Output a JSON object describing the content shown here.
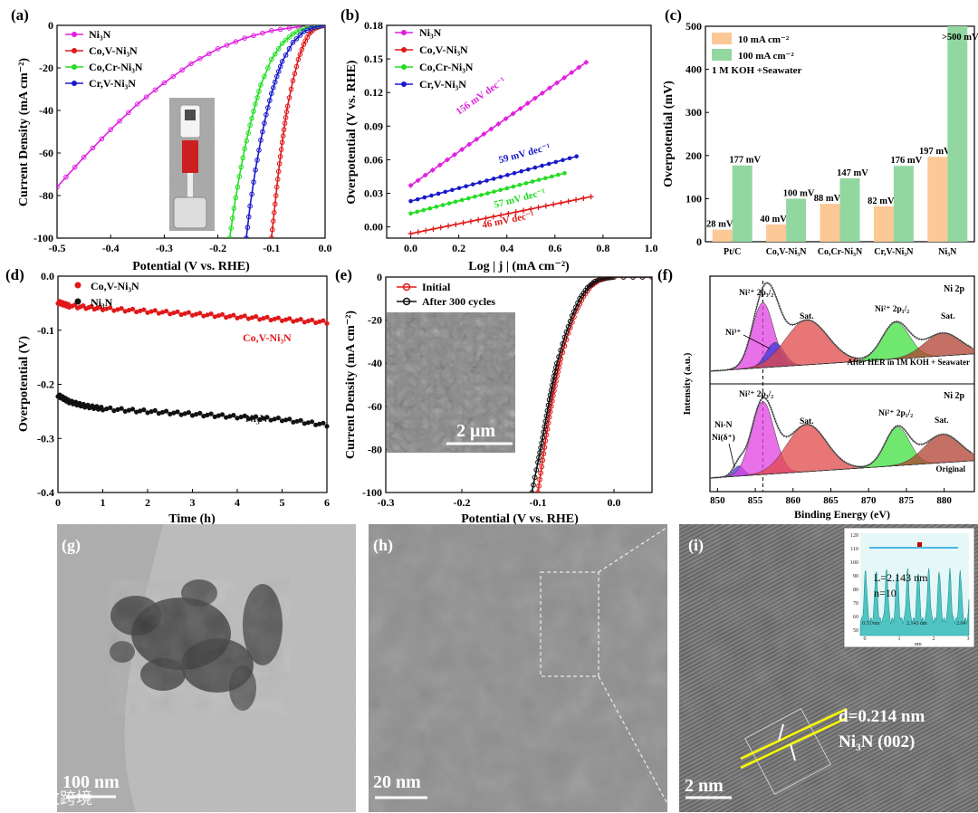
{
  "figure": {
    "watermark": "大数跨境",
    "a": {
      "label": "(a)",
      "xlabel": "Potential (V vs. RHE)",
      "ylabel": "Current Density (mA cm⁻²)",
      "xlim": [
        -0.5,
        0.0
      ],
      "ylim": [
        -100,
        0
      ],
      "xticks": [
        "-0.5",
        "-0.4",
        "-0.3",
        "-0.2",
        "-0.1",
        "0.0"
      ],
      "xtick_values": [
        -0.5,
        -0.4,
        -0.3,
        -0.2,
        -0.1,
        0.0
      ],
      "yticks": [
        "0",
        "-20",
        "-40",
        "-60",
        "-80",
        "-100"
      ],
      "ytick_values": [
        0,
        -20,
        -40,
        -60,
        -80,
        -100
      ],
      "series": [
        {
          "name": "Ni₃N",
          "color": "#e020e0",
          "marker": "circle",
          "x": [
            -0.5,
            -0.45,
            -0.4,
            -0.35,
            -0.3,
            -0.25,
            -0.2,
            -0.15,
            -0.1,
            -0.05,
            0.0
          ],
          "y": [
            -76,
            -62,
            -49,
            -37,
            -27,
            -18,
            -11,
            -6,
            -2.5,
            -0.7,
            0
          ]
        },
        {
          "name": "Co,V-Ni₃N",
          "color": "#e01818",
          "marker": "circle",
          "x": [
            -0.1,
            -0.095,
            -0.09,
            -0.085,
            -0.08,
            -0.075,
            -0.07,
            -0.06,
            -0.05,
            -0.04,
            -0.03,
            -0.02,
            -0.01,
            0.0
          ],
          "y": [
            -100,
            -88,
            -76,
            -65,
            -55,
            -46,
            -38,
            -26,
            -16,
            -9,
            -4,
            -1.5,
            -0.5,
            0
          ]
        },
        {
          "name": "Co,Cr-Ni₃N",
          "color": "#22dd22",
          "marker": "circle",
          "x": [
            -0.178,
            -0.17,
            -0.16,
            -0.15,
            -0.14,
            -0.13,
            -0.12,
            -0.1,
            -0.08,
            -0.06,
            -0.04,
            -0.02,
            0.0
          ],
          "y": [
            -100,
            -86,
            -71,
            -58,
            -47,
            -37,
            -28,
            -16,
            -8.5,
            -4,
            -1.5,
            -0.4,
            0
          ]
        },
        {
          "name": "Cr,V-Ni₃N",
          "color": "#1818cc",
          "marker": "circle",
          "x": [
            -0.147,
            -0.14,
            -0.13,
            -0.12,
            -0.11,
            -0.1,
            -0.09,
            -0.08,
            -0.06,
            -0.04,
            -0.02,
            0.0
          ],
          "y": [
            -100,
            -85,
            -68,
            -54,
            -42,
            -32,
            -24,
            -17,
            -8,
            -3,
            -0.8,
            0
          ]
        }
      ],
      "inset_caption": ""
    },
    "b": {
      "label": "(b)",
      "xlabel": "Log | j | (mA cm⁻²)",
      "ylabel": "Overpotential (V vs. RHE)",
      "xlim": [
        -0.1,
        1.0
      ],
      "ylim": [
        -0.01,
        0.18
      ],
      "xticks": [
        "0.0",
        "0.2",
        "0.4",
        "0.6",
        "0.8",
        "1.0"
      ],
      "xtick_values": [
        0.0,
        0.2,
        0.4,
        0.6,
        0.8,
        1.0
      ],
      "yticks": [
        "0.00",
        "0.03",
        "0.06",
        "0.09",
        "0.12",
        "0.15",
        "0.18"
      ],
      "ytick_values": [
        0.0,
        0.03,
        0.06,
        0.09,
        0.12,
        0.15,
        0.18
      ],
      "series": [
        {
          "name": "Ni₃N",
          "color": "#e020e0",
          "marker": "diamond",
          "x0": 0.0,
          "x1": 0.73,
          "y0": 0.037,
          "y1": 0.147,
          "slope_label": "156 mV dec⁻¹",
          "label_x": 0.2,
          "label_y": 0.095
        },
        {
          "name": "Co,V-Ni₃N",
          "color": "#e01818",
          "marker": "star",
          "x0": 0.0,
          "x1": 0.75,
          "y0": -0.006,
          "y1": 0.027,
          "slope_label": "46 mV dec⁻¹",
          "label_x": 0.3,
          "label_y": -0.006
        },
        {
          "name": "Co,Cr-Ni₃N",
          "color": "#22dd22",
          "marker": "circle",
          "x0": 0.0,
          "x1": 0.64,
          "y0": 0.012,
          "y1": 0.048,
          "slope_label": "57 mV dec⁻¹",
          "label_x": 0.35,
          "label_y": 0.012
        },
        {
          "name": "Cr,V-Ni₃N",
          "color": "#1818cc",
          "marker": "circle",
          "x0": 0.0,
          "x1": 0.69,
          "y0": 0.023,
          "y1": 0.063,
          "slope_label": "59 mV dec⁻¹",
          "label_x": 0.37,
          "label_y": 0.052
        }
      ]
    },
    "c": {
      "label": "(c)",
      "ylabel": "Overpotential (mV)",
      "type": "bar",
      "ylim": [
        0,
        500
      ],
      "yticks": [
        "0",
        "100",
        "200",
        "300",
        "400",
        "500"
      ],
      "ytick_values": [
        0,
        100,
        200,
        300,
        400,
        500
      ],
      "condition": "1 M KOH +Seawater",
      "legend": [
        "10 mA cm⁻²",
        "100 mA cm⁻²"
      ],
      "colors": [
        "#fbc896",
        "#92d7a0"
      ],
      "categories": [
        "Pt/C",
        "Co,V-Ni₃N",
        "Co,Cr-Ni₃N",
        "Cr,V-Ni₃N",
        "Ni₃N"
      ],
      "series": [
        {
          "name": "10 mA cm⁻²",
          "values": [
            28,
            40,
            88,
            82,
            197
          ],
          "labels": [
            "28 mV",
            "40 mV",
            "88 mV",
            "82 mV",
            "197 mV"
          ]
        },
        {
          "name": "100 mA cm⁻²",
          "values": [
            177,
            100,
            147,
            176,
            500
          ],
          "labels": [
            "177 mV",
            "100 mV",
            "147 mV",
            "176 mV",
            ">500 mV"
          ]
        }
      ]
    },
    "d": {
      "label": "(d)",
      "xlabel": "Time (h)",
      "ylabel": "Overpotential (V)",
      "xlim": [
        0,
        6
      ],
      "ylim": [
        -0.4,
        0.0
      ],
      "xticks": [
        "0",
        "1",
        "2",
        "3",
        "4",
        "5",
        "6"
      ],
      "xtick_values": [
        0,
        1,
        2,
        3,
        4,
        5,
        6
      ],
      "yticks": [
        "0.0",
        "-0.1",
        "-0.2",
        "-0.3",
        "-0.4"
      ],
      "ytick_values": [
        0.0,
        -0.1,
        -0.2,
        -0.3,
        -0.4
      ],
      "series": [
        {
          "name": "Co,V-Ni₃N",
          "color": "#e01818",
          "x": [
            0,
            0.25,
            1,
            2,
            3,
            4,
            5,
            6
          ],
          "y": [
            -0.048,
            -0.055,
            -0.06,
            -0.065,
            -0.07,
            -0.075,
            -0.08,
            -0.085
          ],
          "label": "Co,V-Ni₃N"
        },
        {
          "name": "Ni₃N",
          "color": "#111111",
          "x": [
            0,
            0.25,
            0.6,
            1,
            2,
            3,
            4,
            5,
            6
          ],
          "y": [
            -0.22,
            -0.232,
            -0.24,
            -0.245,
            -0.25,
            -0.255,
            -0.26,
            -0.265,
            -0.275
          ],
          "label": "Ni₃N"
        }
      ]
    },
    "e": {
      "label": "(e)",
      "xlabel": "Potential (V vs. RHE)",
      "ylabel": "Current Density (mA cm⁻²)",
      "xlim": [
        -0.3,
        0.05
      ],
      "ylim": [
        -100,
        0
      ],
      "xticks": [
        "-0.3",
        "-0.2",
        "-0.1",
        "0.0"
      ],
      "xtick_values": [
        -0.3,
        -0.2,
        -0.1,
        0.0
      ],
      "yticks": [
        "0",
        "-20",
        "-40",
        "-60",
        "-80",
        "-100"
      ],
      "ytick_values": [
        0,
        -20,
        -40,
        -60,
        -80,
        -100
      ],
      "series": [
        {
          "name": "Initial",
          "color": "#e01818",
          "x": [
            -0.1,
            -0.095,
            -0.09,
            -0.085,
            -0.08,
            -0.075,
            -0.07,
            -0.06,
            -0.05,
            -0.04,
            -0.03,
            -0.02,
            -0.01,
            0.0,
            0.05
          ],
          "y": [
            -100,
            -88,
            -76,
            -65,
            -55,
            -46,
            -38,
            -26,
            -16,
            -9,
            -4,
            -1.5,
            -0.5,
            0,
            0
          ]
        },
        {
          "name": "After 300 cycles",
          "color": "#111111",
          "x": [
            -0.108,
            -0.1,
            -0.095,
            -0.09,
            -0.085,
            -0.08,
            -0.075,
            -0.065,
            -0.055,
            -0.045,
            -0.035,
            -0.025,
            -0.012,
            0.0,
            0.05
          ],
          "y": [
            -100,
            -86,
            -77,
            -67,
            -57,
            -48,
            -40,
            -28,
            -18,
            -10,
            -5,
            -2,
            -0.5,
            0,
            0
          ]
        }
      ],
      "scale_bar": "2 μm"
    },
    "f": {
      "label": "(f)",
      "xlabel": "Binding Energy (eV)",
      "ylabel": "Intensity (a.u.)",
      "xlim": [
        849,
        884
      ],
      "xticks": [
        "850",
        "855",
        "860",
        "865",
        "870",
        "875",
        "880"
      ],
      "xtick_values": [
        850,
        855,
        860,
        865,
        870,
        875,
        880
      ],
      "panel_title": "Ni 2p",
      "top_caption": "After HER in 1M KOH + Seawater",
      "bottom_caption": "Original",
      "labels": {
        "ni2_3": "Ni²⁺ 2p₃/₂",
        "ni2_1": "Ni²⁺ 2p₁/₂",
        "sat": "Sat.",
        "ni3": "Ni³⁺",
        "ninb": "Ni-N",
        "nid": "Ni(δ⁺)"
      },
      "peaks_top": [
        {
          "name": "Ni²⁺ 2p3/2",
          "center": 856.0,
          "height": 0.8,
          "width": 1.4,
          "color": "#e040e0"
        },
        {
          "name": "Ni³⁺",
          "center": 857.6,
          "height": 0.3,
          "width": 1.2,
          "color": "#3a3ad8"
        },
        {
          "name": "Sat.",
          "center": 861.8,
          "height": 0.55,
          "width": 2.8,
          "color": "#e04848"
        },
        {
          "name": "Ni²⁺ 2p1/2",
          "center": 873.6,
          "height": 0.45,
          "width": 1.8,
          "color": "#40e040"
        },
        {
          "name": "Sat.",
          "center": 879.8,
          "height": 0.28,
          "width": 2.4,
          "color": "#b04030"
        }
      ],
      "peaks_bottom": [
        {
          "name": "Ni-N",
          "center": 852.8,
          "height": 0.12,
          "width": 0.7,
          "color": "#3a3ad8"
        },
        {
          "name": "Ni²⁺ 2p3/2",
          "center": 856.0,
          "height": 0.85,
          "width": 1.5,
          "color": "#e040e0"
        },
        {
          "name": "Sat.",
          "center": 861.8,
          "height": 0.55,
          "width": 2.6,
          "color": "#e04848"
        },
        {
          "name": "Ni²⁺ 2p1/2",
          "center": 873.8,
          "height": 0.45,
          "width": 1.6,
          "color": "#40e040"
        },
        {
          "name": "Sat.",
          "center": 879.8,
          "height": 0.33,
          "width": 2.4,
          "color": "#b04030"
        }
      ]
    },
    "g": {
      "label": "(g)",
      "scale_bar": "100 nm"
    },
    "h": {
      "label": "(h)",
      "scale_bar": "20 nm"
    },
    "i": {
      "label": "(i)",
      "scale_bar": "2 nm",
      "d_spacing": "d=0.214 nm",
      "phase": "Ni₃N (002)",
      "inset": {
        "length": "L=2.143 nm",
        "count": "n=10",
        "yticks": [
          "120",
          "110",
          "100",
          "90",
          "80",
          "70",
          "60",
          "50"
        ],
        "xticks": [
          "0",
          "1",
          "2",
          "3"
        ],
        "xlabel": "nm",
        "measure_left": "0.51 nm",
        "measure_mid": "2.143 nm",
        "measure_right": "2.64"
      }
    }
  }
}
